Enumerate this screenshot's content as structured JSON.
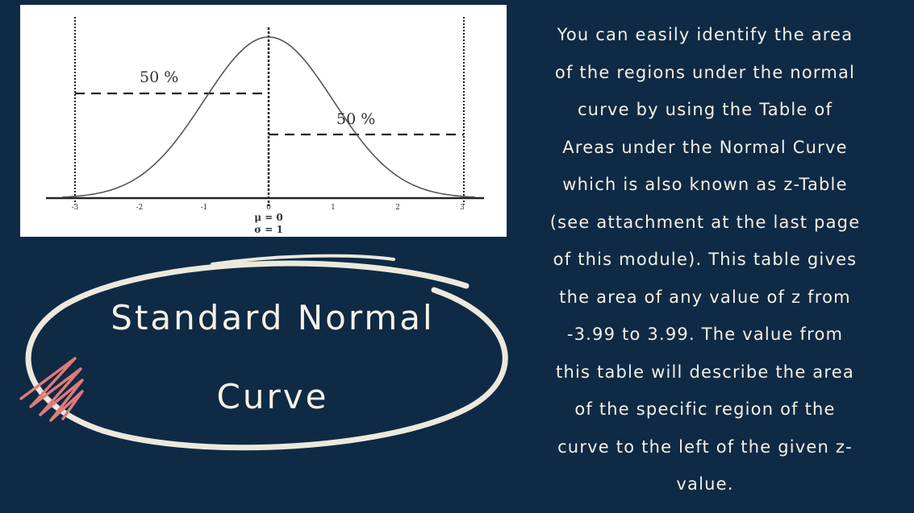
{
  "figure": {
    "left_region_label": "50 %",
    "right_region_label": "50 %",
    "x_ticks": [
      "-3",
      "-2",
      "-1",
      "0",
      "1",
      "2",
      "3"
    ],
    "mu_label": "μ = 0",
    "sigma_label": "σ = 1",
    "curve_color": "#555555",
    "line_color": "#222222"
  },
  "title": {
    "line1": "Standard Normal",
    "line2": "Curve",
    "ellipse_color": "#ece9dc",
    "scribble_color": "#e07b7b"
  },
  "body": {
    "lines": [
      "You can easily identify the area",
      "of the regions under the normal",
      "curve by using the Table of",
      "Areas under the Normal Curve",
      "which is also known as z-Table",
      "(see attachment at the last page",
      "of this module). This table gives",
      "the area of any value of z from",
      "-3.99 to 3.99. The value from",
      "this table will describe the area",
      "of the specific region of the",
      "curve to the left of the given z-",
      "value."
    ]
  }
}
